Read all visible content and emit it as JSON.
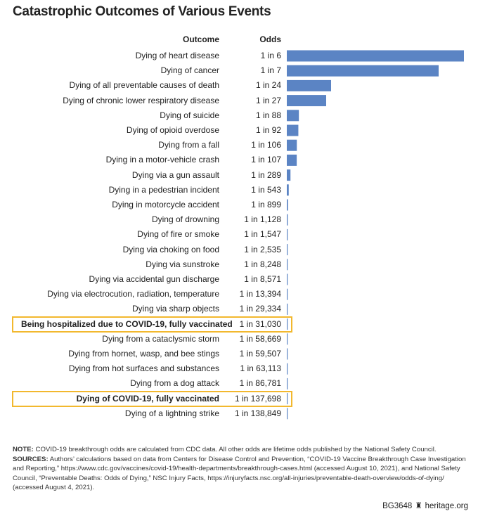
{
  "title": "Catastrophic Outcomes of Various Events",
  "headers": {
    "outcome": "Outcome",
    "odds": "Odds"
  },
  "chart_data": {
    "type": "bar",
    "orientation": "horizontal",
    "title": "Catastrophic Outcomes of Various Events",
    "xlabel": "",
    "ylabel": "Outcome",
    "value_description": "probability (1/N)",
    "bar_color": "#5b84c4",
    "highlight_color": "#f2b82e",
    "categories": [
      "Dying of heart disease",
      "Dying of cancer",
      "Dying of all preventable causes of death",
      "Dying of chronic lower respiratory disease",
      "Dying of suicide",
      "Dying of opioid overdose",
      "Dying from a fall",
      "Dying in a motor-vehicle crash",
      "Dying via a gun assault",
      "Dying in a pedestrian incident",
      "Dying in motorcycle accident",
      "Dying of drowning",
      "Dying of fire or smoke",
      "Dying via choking on food",
      "Dying via sunstroke",
      "Dying via accidental gun discharge",
      "Dying via electrocution, radiation, temperature",
      "Dying via sharp objects",
      "Being hospitalized due to COVID-19, fully vaccinated",
      "Dying from a cataclysmic storm",
      "Dying from hornet, wasp, and bee stings",
      "Dying from hot surfaces and substances",
      "Dying from a dog attack",
      "Dying of COVID-19, fully vaccinated",
      "Dying of a lightning strike"
    ],
    "odds_labels": [
      "1 in 6",
      "1 in 7",
      "1 in 24",
      "1 in 27",
      "1 in 88",
      "1 in 92",
      "1 in 106",
      "1 in 107",
      "1 in 289",
      "1 in 543",
      "1 in 899",
      "1 in 1,128",
      "1 in 1,547",
      "1 in 2,535",
      "1 in 8,248",
      "1 in 8,571",
      "1 in 13,394",
      "1 in 29,334",
      "1 in 31,030",
      "1 in 58,669",
      "1 in 59,507",
      "1 in 63,113",
      "1 in 86,781",
      "1 in 137,698",
      "1 in 138,849"
    ],
    "odds_denominators": [
      6,
      7,
      24,
      27,
      88,
      92,
      106,
      107,
      289,
      543,
      899,
      1128,
      1547,
      2535,
      8248,
      8571,
      13394,
      29334,
      31030,
      58669,
      59507,
      63113,
      86781,
      137698,
      138849
    ],
    "highlighted": [
      false,
      false,
      false,
      false,
      false,
      false,
      false,
      false,
      false,
      false,
      false,
      false,
      false,
      false,
      false,
      false,
      false,
      false,
      true,
      false,
      false,
      false,
      false,
      true,
      false
    ]
  },
  "note": {
    "note_label": "NOTE:",
    "note_text": " COVID-19 breakthrough odds are calculated from CDC data. All other odds are lifetime odds published by the National Safety Council.",
    "sources_label": "SOURCES:",
    "sources_text": " Authors’ calculations based on data from Centers for Disease Control and Prevention, “COVID-19 Vaccine Breakthrough Case Investigation and Reporting,” https://www.cdc.gov/vaccines/covid-19/health-departments/breakthrough-cases.html (accessed August 10, 2021), and National Safety Council, “Preventable Deaths: Odds of Dying,” NSC Injury Facts, https://injuryfacts.nsc.org/all-injuries/preventable-death-overview/odds-of-dying/ (accessed August 4, 2021)."
  },
  "footer": {
    "code": "BG3648",
    "site": "heritage.org"
  }
}
